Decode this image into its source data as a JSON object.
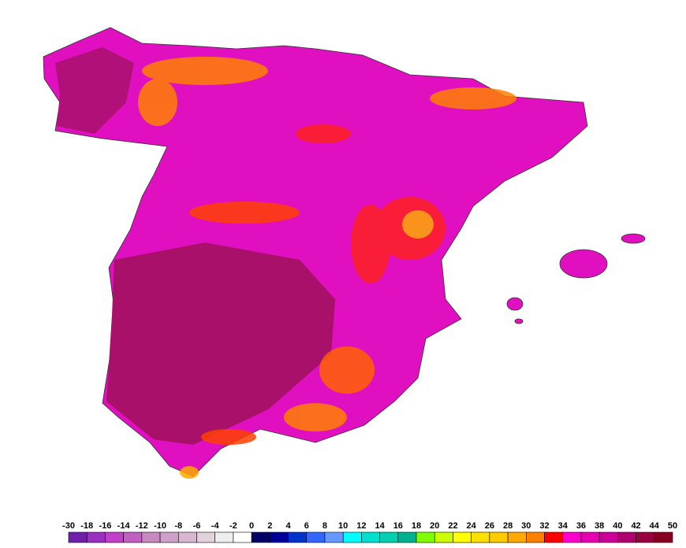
{
  "legend": {
    "labels": [
      -30,
      -18,
      -16,
      -14,
      -12,
      -10,
      -8,
      -6,
      -4,
      -2,
      0,
      2,
      4,
      6,
      8,
      10,
      12,
      14,
      16,
      18,
      20,
      22,
      24,
      26,
      28,
      30,
      32,
      34,
      36,
      38,
      40,
      42,
      44,
      50
    ],
    "colors": [
      "#7020a8",
      "#9a30c0",
      "#c040c8",
      "#c060c0",
      "#c888c0",
      "#d0a0c8",
      "#d8b8d0",
      "#e2d2dc",
      "#eeeeee",
      "#ffffff",
      "#000066",
      "#000099",
      "#0033cc",
      "#3366ff",
      "#6699ff",
      "#00ffff",
      "#00e0d0",
      "#00d0b0",
      "#00b090",
      "#80ff00",
      "#ccff00",
      "#ffff00",
      "#ffe000",
      "#ffcc00",
      "#ffaa00",
      "#ff8000",
      "#ff0000",
      "#ff00cc",
      "#e600b0",
      "#cc0099",
      "#b00070",
      "#990040",
      "#880020"
    ]
  }
}
